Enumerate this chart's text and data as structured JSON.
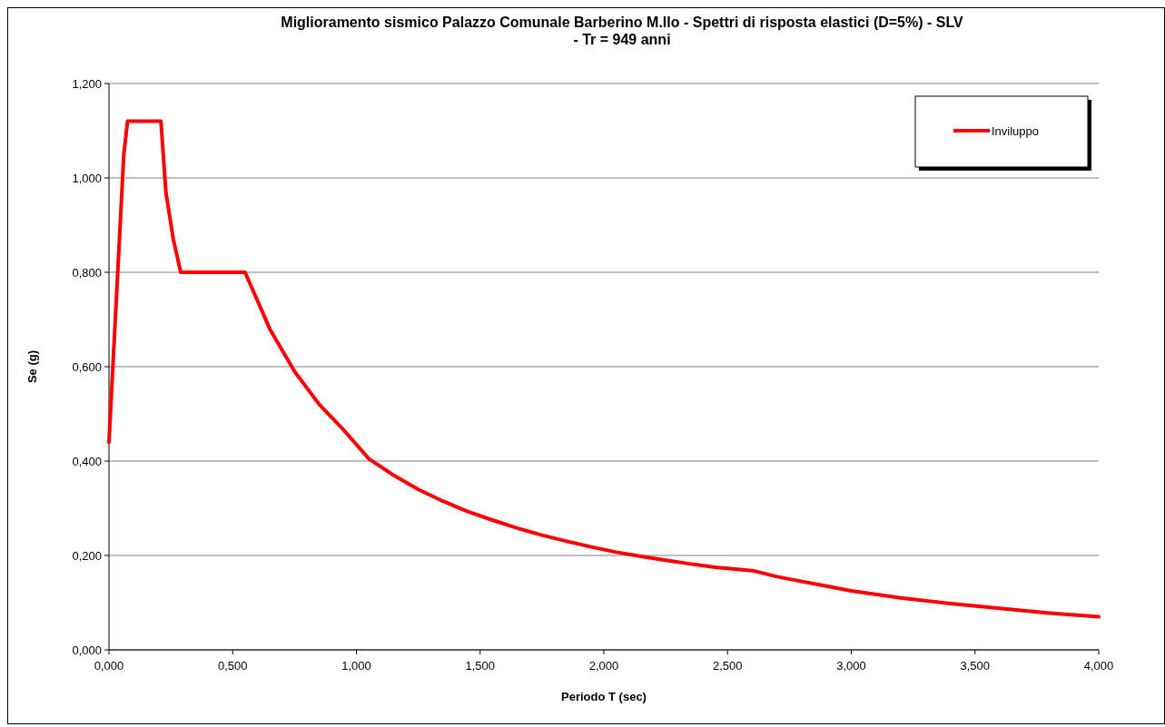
{
  "chart_data": {
    "type": "line",
    "title": "Miglioramento sismico Palazzo Comunale Barberino M.llo - Spettri di risposta elastici (D=5%) - SLV - Tr = 949 anni",
    "xlabel": "Periodo T (sec)",
    "ylabel": "Se (g)",
    "x": [
      0,
      0.06,
      0.075,
      0.21,
      0.23,
      0.26,
      0.29,
      0.55,
      0.65,
      0.75,
      0.85,
      0.95,
      1.05,
      1.15,
      1.25,
      1.35,
      1.45,
      1.55,
      1.65,
      1.75,
      1.85,
      1.95,
      2.05,
      2.15,
      2.25,
      2.35,
      2.45,
      2.6,
      2.7,
      2.8,
      2.9,
      3.0,
      3.2,
      3.4,
      3.6,
      3.8,
      4.0
    ],
    "series": [
      {
        "name": "Inviluppo",
        "color": "#ff0000",
        "values": [
          0.44,
          1.05,
          1.12,
          1.12,
          0.97,
          0.87,
          0.8,
          0.8,
          0.68,
          0.59,
          0.52,
          0.465,
          0.405,
          0.37,
          0.34,
          0.315,
          0.293,
          0.275,
          0.258,
          0.243,
          0.23,
          0.218,
          0.207,
          0.198,
          0.19,
          0.182,
          0.175,
          0.168,
          0.155,
          0.145,
          0.135,
          0.125,
          0.11,
          0.098,
          0.088,
          0.078,
          0.07
        ]
      }
    ],
    "xlim": [
      0,
      4
    ],
    "xticks": [
      {
        "value": 0,
        "label": "0,000"
      },
      {
        "value": 0.5,
        "label": "0,500"
      },
      {
        "value": 1,
        "label": "1,000"
      },
      {
        "value": 1.5,
        "label": "1,500"
      },
      {
        "value": 2,
        "label": "2,000"
      },
      {
        "value": 2.5,
        "label": "2,500"
      },
      {
        "value": 3,
        "label": "3,000"
      },
      {
        "value": 3.5,
        "label": "3,500"
      },
      {
        "value": 4,
        "label": "4,000"
      }
    ],
    "ylim": [
      0,
      1.2
    ],
    "yticks": [
      {
        "value": 0,
        "label": "0,000"
      },
      {
        "value": 0.2,
        "label": "0,200"
      },
      {
        "value": 0.4,
        "label": "0,400"
      },
      {
        "value": 0.6,
        "label": "0,600"
      },
      {
        "value": 0.8,
        "label": "0,800"
      },
      {
        "value": 1,
        "label": "1,000"
      },
      {
        "value": 1.2,
        "label": "1,200"
      }
    ],
    "grid": "y",
    "legend": "top right",
    "marker": "none",
    "line_style": "solid"
  }
}
